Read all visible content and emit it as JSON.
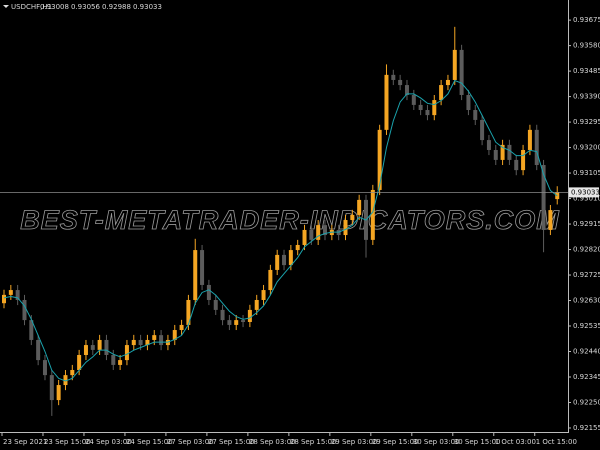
{
  "chart_data": {
    "type": "candlestick",
    "symbol": "USDCHF,H1",
    "watermark": "BEST-METATRADER-INDICATORS.COM",
    "up_color": "#f5a623",
    "down_color": "#5c5c5c",
    "ma_color": "#1aa3ad",
    "ylim": [
      0.9214,
      0.9375
    ],
    "yticks": [
      0.92155,
      {
        "value": 0.9225,
        "label": "0.92250"
      },
      0.92345,
      {
        "value": 0.9244,
        "label": "0.92440"
      },
      0.92535,
      {
        "value": 0.9263,
        "label": "0.92630"
      },
      0.92725,
      {
        "value": 0.9282,
        "label": "0.92820"
      },
      0.92915,
      {
        "value": 0.9301,
        "label": "0.93010"
      },
      0.93105,
      {
        "value": 0.932,
        "label": "0.93200"
      },
      0.93295,
      {
        "value": 0.9339,
        "label": "0.93390"
      },
      0.93485,
      {
        "value": 0.9358,
        "label": "0.93580"
      },
      0.93675
    ],
    "categories": [
      "23 Sep 2021",
      null,
      null,
      null,
      null,
      null,
      "23 Sep 15:00",
      null,
      null,
      null,
      null,
      null,
      "24 Sep 03:00",
      null,
      null,
      null,
      null,
      null,
      "24 Sep 15:00",
      null,
      null,
      null,
      null,
      null,
      "27 Sep 03:00",
      null,
      null,
      null,
      null,
      null,
      "27 Sep 15:00",
      null,
      null,
      null,
      null,
      null,
      "28 Sep 03:00",
      null,
      null,
      null,
      null,
      null,
      "28 Sep 15:00",
      null,
      null,
      null,
      null,
      null,
      "29 Sep 03:00",
      null,
      null,
      null,
      null,
      null,
      "29 Sep 15:00",
      null,
      null,
      null,
      null,
      null,
      "30 Sep 03:00",
      null,
      null,
      null,
      null,
      null,
      "30 Sep 15:00",
      null,
      null,
      null,
      null,
      null,
      "1 Oct 03:00",
      null,
      null,
      null,
      null,
      null,
      "1 Oct 15:00",
      null,
      null,
      null
    ],
    "open": [
      0.9262,
      0.92651,
      0.92669,
      0.92632,
      0.92557,
      0.92483,
      0.92408,
      0.92352,
      0.92259,
      0.92315,
      0.92352,
      0.92371,
      0.92427,
      0.92464,
      0.92446,
      0.92483,
      0.92427,
      0.9239,
      0.92408,
      0.92464,
      0.92483,
      0.92464,
      0.92483,
      0.92501,
      0.92464,
      0.92483,
      0.9252,
      0.92539,
      0.92632,
      0.92818,
      0.92688,
      0.92632,
      0.92595,
      0.92557,
      0.92539,
      0.92557,
      0.9255,
      0.92595,
      0.92632,
      0.92669,
      0.92744,
      0.928,
      0.92762,
      0.92818,
      0.92837,
      0.92893,
      0.92856,
      0.92911,
      0.92874,
      0.92893,
      0.92874,
      0.9293,
      0.92949,
      0.93005,
      0.92856,
      0.93042,
      0.93266,
      0.93471,
      0.93452,
      0.93433,
      0.93396,
      0.93359,
      0.9334,
      0.93321,
      0.93377,
      0.93433,
      0.93452,
      0.93564,
      0.93396,
      0.9334,
      0.93303,
      0.93228,
      0.93191,
      0.93154,
      0.9321,
      0.93154,
      0.93116,
      0.93191,
      0.93266,
      0.93135,
      0.92893,
      0.93008
    ],
    "high": [
      0.9267,
      0.92688,
      0.92688,
      0.92651,
      0.92576,
      0.92502,
      0.92427,
      0.92371,
      0.92334,
      0.92371,
      0.9239,
      0.92446,
      0.92483,
      0.92483,
      0.92502,
      0.92502,
      0.92446,
      0.92427,
      0.92483,
      0.92502,
      0.92502,
      0.92502,
      0.9252,
      0.9252,
      0.92502,
      0.92539,
      0.92558,
      0.92651,
      0.9286,
      0.92837,
      0.92707,
      0.92651,
      0.92614,
      0.92576,
      0.92576,
      0.92576,
      0.92614,
      0.92651,
      0.92688,
      0.92763,
      0.92819,
      0.92819,
      0.92837,
      0.92856,
      0.92912,
      0.92912,
      0.9293,
      0.9293,
      0.92912,
      0.92912,
      0.92949,
      0.92968,
      0.93024,
      0.93024,
      0.93061,
      0.93285,
      0.9351,
      0.9349,
      0.93471,
      0.93452,
      0.93415,
      0.93378,
      0.93359,
      0.93396,
      0.93452,
      0.93471,
      0.9365,
      0.93583,
      0.93415,
      0.93359,
      0.93322,
      0.93247,
      0.9321,
      0.93229,
      0.93229,
      0.93173,
      0.9321,
      0.93285,
      0.93285,
      0.93154,
      0.92986,
      0.93056
    ],
    "low": [
      0.92601,
      0.92632,
      0.92613,
      0.92538,
      0.92464,
      0.92389,
      0.92333,
      0.922,
      0.9224,
      0.92296,
      0.92333,
      0.92352,
      0.92408,
      0.92427,
      0.92427,
      0.92408,
      0.92371,
      0.92371,
      0.92389,
      0.92445,
      0.92445,
      0.92445,
      0.92464,
      0.92445,
      0.92445,
      0.92464,
      0.92501,
      0.9252,
      0.92613,
      0.92669,
      0.92613,
      0.92576,
      0.92538,
      0.9252,
      0.9252,
      0.92531,
      0.92531,
      0.92576,
      0.92613,
      0.9265,
      0.92725,
      0.92743,
      0.92743,
      0.92799,
      0.92818,
      0.92837,
      0.92837,
      0.92855,
      0.92855,
      0.92855,
      0.92855,
      0.92911,
      0.9293,
      0.9279,
      0.92837,
      0.93023,
      0.93247,
      0.93433,
      0.93414,
      0.93377,
      0.9334,
      0.93321,
      0.93302,
      0.93302,
      0.93358,
      0.93414,
      0.93433,
      0.93377,
      0.93321,
      0.93284,
      0.93209,
      0.93172,
      0.93135,
      0.93135,
      0.93135,
      0.93097,
      0.93097,
      0.93172,
      0.93116,
      0.9281,
      0.92874,
      0.92988
    ],
    "close": [
      0.92651,
      0.92669,
      0.92632,
      0.92557,
      0.92483,
      0.92408,
      0.92352,
      0.92259,
      0.92315,
      0.92352,
      0.92371,
      0.92427,
      0.92464,
      0.92446,
      0.92483,
      0.92427,
      0.9239,
      0.92408,
      0.92464,
      0.92483,
      0.92464,
      0.92483,
      0.92501,
      0.92464,
      0.92483,
      0.9252,
      0.92539,
      0.92632,
      0.92818,
      0.92688,
      0.92632,
      0.92595,
      0.92557,
      0.92539,
      0.92557,
      0.9255,
      0.92595,
      0.92632,
      0.92669,
      0.92744,
      0.928,
      0.92762,
      0.92818,
      0.92837,
      0.92893,
      0.92856,
      0.92911,
      0.92874,
      0.92893,
      0.92874,
      0.9293,
      0.92949,
      0.93005,
      0.92856,
      0.93042,
      0.93266,
      0.93471,
      0.93452,
      0.93433,
      0.93396,
      0.93359,
      0.9334,
      0.93321,
      0.93377,
      0.93433,
      0.93452,
      0.93564,
      0.93396,
      0.9334,
      0.93303,
      0.93228,
      0.93191,
      0.93154,
      0.9321,
      0.93154,
      0.93116,
      0.93191,
      0.93266,
      0.93135,
      0.92893,
      0.92967,
      0.93033
    ],
    "ma": [
      0.9264,
      0.92645,
      0.9264,
      0.9261,
      0.9256,
      0.925,
      0.9244,
      0.9237,
      0.9234,
      0.9233,
      0.9234,
      0.9237,
      0.924,
      0.9242,
      0.92445,
      0.92445,
      0.9243,
      0.9242,
      0.9243,
      0.92445,
      0.92455,
      0.92465,
      0.92475,
      0.92475,
      0.92475,
      0.92485,
      0.925,
      0.9254,
      0.9262,
      0.9266,
      0.9267,
      0.9265,
      0.9262,
      0.9259,
      0.9257,
      0.9256,
      0.92565,
      0.92585,
      0.9261,
      0.9265,
      0.927,
      0.9273,
      0.9276,
      0.9279,
      0.9283,
      0.9285,
      0.9287,
      0.9288,
      0.92885,
      0.92885,
      0.92895,
      0.9291,
      0.9294,
      0.9293,
      0.9296,
      0.9306,
      0.932,
      0.933,
      0.9337,
      0.934,
      0.934,
      0.93385,
      0.93365,
      0.9336,
      0.93375,
      0.934,
      0.9345,
      0.9344,
      0.9341,
      0.9337,
      0.9332,
      0.9327,
      0.9322,
      0.932,
      0.9319,
      0.9317,
      0.9317,
      0.9319,
      0.93185,
      0.931,
      0.9304,
      0.9302
    ]
  }
}
